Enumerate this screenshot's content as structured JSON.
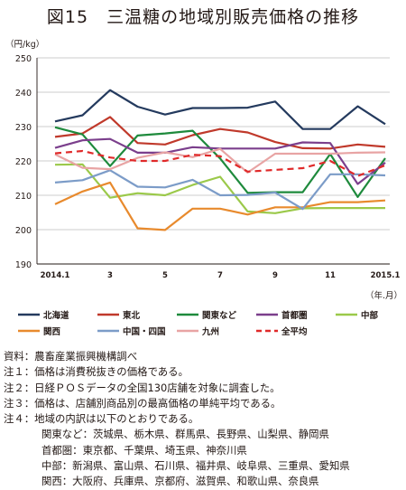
{
  "title": "図15　三温糖の地域別販売価格の推移",
  "chart_data": {
    "type": "line",
    "x": [
      "2014.1",
      "2",
      "3",
      "4",
      "5",
      "6",
      "7",
      "8",
      "9",
      "10",
      "11",
      "12",
      "2015.1"
    ],
    "x_tick_labels": [
      "2014.1",
      "",
      "3",
      "",
      "5",
      "",
      "7",
      "",
      "9",
      "",
      "11",
      "",
      "2015.1"
    ],
    "y_unit_label": "（円/kg）",
    "x_unit_label": "（年.月）",
    "ylim": [
      190,
      250
    ],
    "y_ticks": [
      190,
      200,
      210,
      220,
      230,
      240,
      250
    ],
    "grid": "horizontal",
    "legend_position": "bottom",
    "series": [
      {
        "name": "北海道",
        "color": "#243a5e",
        "dash": false,
        "values": [
          231.5,
          233.3,
          240.6,
          235.8,
          233.5,
          235.4,
          235.4,
          235.5,
          237.3,
          229.3,
          229.3,
          235.9,
          230.7
        ]
      },
      {
        "name": "東北",
        "color": "#c0392b",
        "dash": false,
        "values": [
          227.0,
          228.0,
          232.8,
          225.2,
          224.8,
          227.5,
          229.3,
          228.3,
          225.5,
          223.7,
          223.6,
          224.8,
          224.1
        ]
      },
      {
        "name": "関東など",
        "color": "#1e8a3c",
        "dash": false,
        "values": [
          229.8,
          227.7,
          218.5,
          227.4,
          228.0,
          228.8,
          220.7,
          210.7,
          210.9,
          210.9,
          222.0,
          209.5,
          220.8
        ]
      },
      {
        "name": "首都圏",
        "color": "#7b3f8c",
        "dash": false,
        "values": [
          223.8,
          226.0,
          226.4,
          222.4,
          222.4,
          224.0,
          223.6,
          223.6,
          223.6,
          225.4,
          225.2,
          213.3,
          219.5
        ]
      },
      {
        "name": "中部",
        "color": "#9bc94a",
        "dash": false,
        "values": [
          218.9,
          219.0,
          209.3,
          210.6,
          210.0,
          213.0,
          215.4,
          205.3,
          204.8,
          206.2,
          206.3,
          206.3,
          206.3
        ]
      },
      {
        "name": "関西",
        "color": "#e88a2d",
        "dash": false,
        "values": [
          207.4,
          211.1,
          213.7,
          200.4,
          199.9,
          206.1,
          206.1,
          204.4,
          206.5,
          206.5,
          208.0,
          208.0,
          208.5
        ]
      },
      {
        "name": "中国・四国",
        "color": "#7c9cc8",
        "dash": false,
        "values": [
          213.7,
          214.4,
          217.3,
          212.5,
          212.3,
          214.5,
          210.0,
          210.1,
          210.8,
          206.0,
          216.1,
          216.1,
          215.8
        ]
      },
      {
        "name": "九州",
        "color": "#e8a4a4",
        "dash": false,
        "values": [
          221.9,
          218.0,
          217.6,
          220.9,
          222.5,
          221.1,
          223.5,
          216.6,
          222.1,
          222.1,
          222.1,
          222.4,
          222.5
        ]
      },
      {
        "name": "全平均",
        "color": "#e02a2a",
        "dash": true,
        "values": [
          222.2,
          222.9,
          221.0,
          220.0,
          220.0,
          221.8,
          221.4,
          216.9,
          217.4,
          217.9,
          220.0,
          215.6,
          218.7
        ]
      }
    ]
  },
  "notes": [
    {
      "text": "資料：農畜産業振興機構調べ",
      "indent": false
    },
    {
      "text": "注１：価格は消費税抜きの価格である。",
      "indent": false
    },
    {
      "text": "注２：日経ＰＯＳデータの全国130店舗を対象に調査した。",
      "indent": false
    },
    {
      "text": "注３：価格は、店舗別商品別の最高価格の単純平均である。",
      "indent": false
    },
    {
      "text": "注４：地域の内訳は以下のとおりである。",
      "indent": false
    },
    {
      "text": "関東など：茨城県、栃木県、群馬県、長野県、山梨県、静岡県",
      "indent": true
    },
    {
      "text": "首都圏：東京都、千葉県、埼玉県、神奈川県",
      "indent": true
    },
    {
      "text": "中部：新潟県、富山県、石川県、福井県、岐阜県、三重県、愛知県",
      "indent": true
    },
    {
      "text": "関西：大阪府、兵庫県、京都府、滋賀県、和歌山県、奈良県",
      "indent": true
    }
  ]
}
